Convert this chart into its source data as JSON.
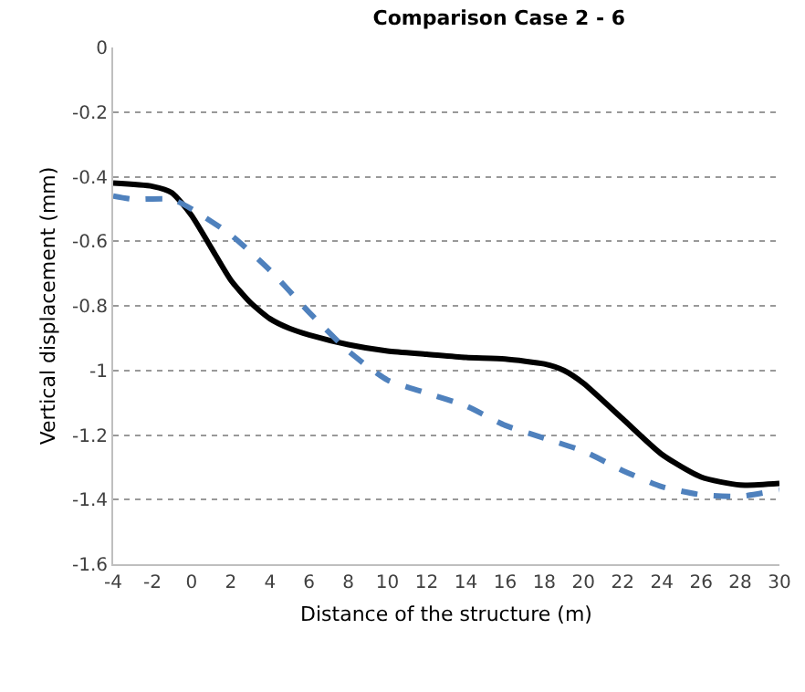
{
  "chart_data": {
    "type": "line",
    "title": "Comparison Case 2 - 6",
    "xlabel": "Distance of the structure (m)",
    "ylabel": "Vertical displacement (mm)",
    "xlim": [
      -4,
      30
    ],
    "xticks": [
      -4,
      -2,
      0,
      2,
      4,
      6,
      8,
      10,
      12,
      14,
      16,
      18,
      20,
      22,
      24,
      26,
      28,
      30
    ],
    "ylim": [
      -1.6,
      0
    ],
    "yticks": [
      -1.6,
      -1.4,
      -1.2,
      -1,
      -0.8,
      -0.6,
      -0.4,
      -0.2,
      0
    ],
    "grid": "y",
    "marker": "none",
    "series": [
      {
        "color": "#000000",
        "line_style": "solid",
        "x": [
          -4,
          -2,
          -1,
          0,
          1,
          2,
          3,
          4,
          5,
          6,
          8,
          10,
          12,
          14,
          16,
          18,
          19,
          20,
          22,
          24,
          26,
          28,
          30
        ],
        "values": [
          -0.42,
          -0.43,
          -0.45,
          -0.52,
          -0.62,
          -0.72,
          -0.79,
          -0.84,
          -0.87,
          -0.89,
          -0.92,
          -0.94,
          -0.95,
          -0.96,
          -0.965,
          -0.98,
          -1.0,
          -1.04,
          -1.15,
          -1.26,
          -1.33,
          -1.355,
          -1.35
        ]
      },
      {
        "color": "#4f81bd",
        "line_style": "dashed",
        "x": [
          -4,
          -3,
          -1,
          0,
          2,
          4,
          6,
          8,
          10,
          12,
          14,
          16,
          18,
          20,
          22,
          24,
          26,
          28,
          30
        ],
        "values": [
          -0.46,
          -0.47,
          -0.47,
          -0.5,
          -0.58,
          -0.69,
          -0.82,
          -0.94,
          -1.03,
          -1.07,
          -1.11,
          -1.17,
          -1.21,
          -1.25,
          -1.31,
          -1.36,
          -1.385,
          -1.39,
          -1.37
        ]
      }
    ]
  }
}
